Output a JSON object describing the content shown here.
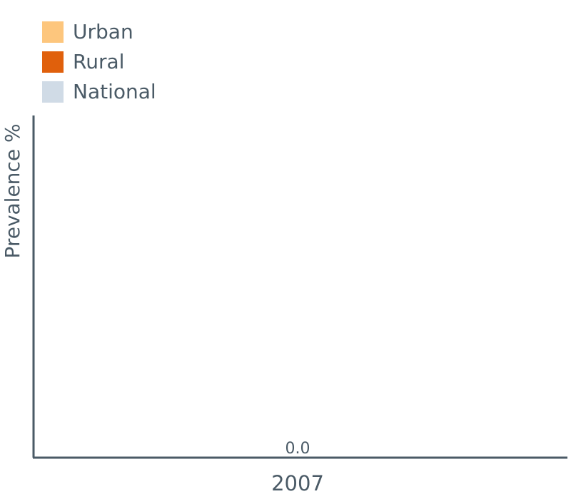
{
  "legend": {
    "items": [
      {
        "label": "Urban",
        "color": "#fdc67d"
      },
      {
        "label": "Rural",
        "color": "#e0600c"
      },
      {
        "label": "National",
        "color": "#d0dbe6"
      }
    ]
  },
  "chart_data": {
    "type": "bar",
    "categories": [
      "2007"
    ],
    "series": [
      {
        "name": "National",
        "values": [
          0.0
        ]
      }
    ],
    "data_labels": [
      "0.0"
    ],
    "ylabel": "Prevalence %",
    "xlabel": "",
    "legend_placement": "top-left",
    "grid": false,
    "colors": {
      "axis": "#4a5a66",
      "text": "#4a5a66"
    }
  }
}
